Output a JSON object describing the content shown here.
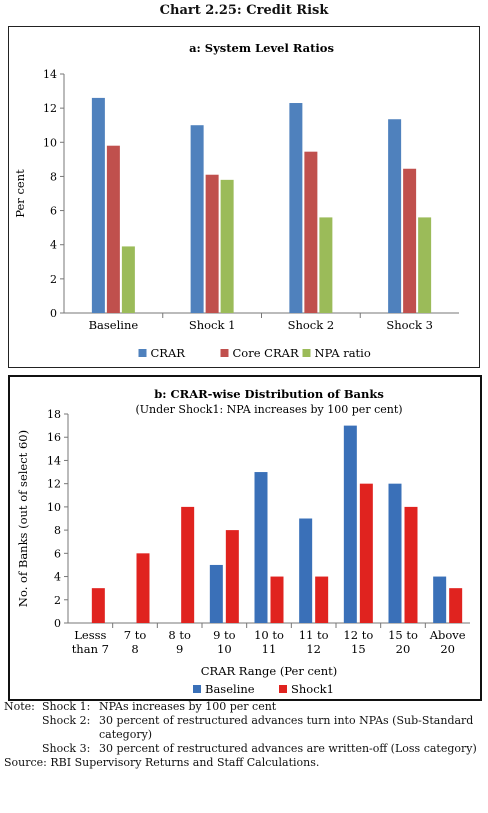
{
  "page_title": "Chart 2.25: Credit Risk",
  "chart_data": [
    {
      "type": "bar",
      "title": "a: System Level Ratios",
      "ylabel": "Per cent",
      "xlabel": "",
      "categories": [
        "Baseline",
        "Shock 1",
        "Shock 2",
        "Shock 3"
      ],
      "ylim": [
        0,
        14
      ],
      "yticks": [
        0,
        2,
        4,
        6,
        8,
        10,
        12,
        14
      ],
      "series": [
        {
          "name": "CRAR",
          "color": "#4F81BD",
          "values": [
            12.6,
            11.0,
            12.3,
            11.35
          ]
        },
        {
          "name": "Core CRAR",
          "color": "#C0504D",
          "values": [
            9.8,
            8.1,
            9.45,
            8.45
          ]
        },
        {
          "name": "NPA ratio",
          "color": "#9BBB59",
          "values": [
            3.9,
            7.8,
            5.6,
            5.6
          ]
        }
      ],
      "legend": "bottom",
      "grid": false
    },
    {
      "type": "bar",
      "title": "b: CRAR-wise Distribution of Banks",
      "subtitle": "(Under Shock1: NPA increases by 100 per cent)",
      "ylabel": "No. of Banks (out of select 60)",
      "xlabel": "CRAR Range (Per cent)",
      "categories": [
        [
          "Lesss",
          "than 7"
        ],
        [
          "7 to",
          "8"
        ],
        [
          "8 to",
          "9"
        ],
        [
          "9 to",
          "10"
        ],
        [
          "10 to",
          "11"
        ],
        [
          "11 to",
          "12"
        ],
        [
          "12 to",
          "15"
        ],
        [
          "15 to",
          "20"
        ],
        [
          "Above",
          "20"
        ]
      ],
      "ylim": [
        0,
        18
      ],
      "yticks": [
        0,
        2,
        4,
        6,
        8,
        10,
        12,
        14,
        16,
        18
      ],
      "series": [
        {
          "name": "Baseline",
          "color": "#3A70B8",
          "values": [
            0,
            0,
            0,
            5,
            13,
            9,
            17,
            12,
            4
          ]
        },
        {
          "name": "Shock1",
          "color": "#E0231F",
          "values": [
            3,
            6,
            10,
            8,
            4,
            4,
            12,
            10,
            3
          ]
        }
      ],
      "legend": "bottom",
      "grid": false
    }
  ],
  "notes": {
    "label": "Note:",
    "items": [
      {
        "shock": "Shock 1:",
        "text": "NPAs increases by 100 per cent"
      },
      {
        "shock": "Shock 2:",
        "text": "30 percent of restructured advances turn into NPAs (Sub-Standard category)"
      },
      {
        "shock": "Shock 3:",
        "text": "30 percent of restructured advances are written-off (Loss category)"
      }
    ]
  },
  "source": "Source: RBI Supervisory Returns and Staff Calculations."
}
